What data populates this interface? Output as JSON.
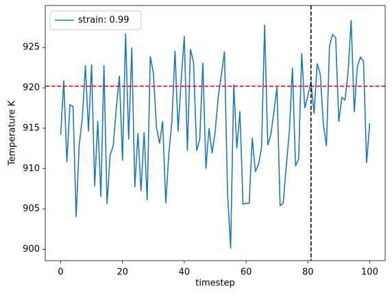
{
  "chart_data": {
    "type": "line",
    "xlabel": "timestep",
    "ylabel": "Temperature K",
    "x": [
      0,
      1,
      2,
      3,
      4,
      5,
      6,
      7,
      8,
      9,
      10,
      11,
      12,
      13,
      14,
      15,
      16,
      17,
      18,
      19,
      20,
      21,
      22,
      23,
      24,
      25,
      26,
      27,
      28,
      29,
      30,
      31,
      32,
      33,
      34,
      35,
      36,
      37,
      38,
      39,
      40,
      41,
      42,
      43,
      44,
      45,
      46,
      47,
      48,
      49,
      50,
      51,
      52,
      53,
      54,
      55,
      56,
      57,
      58,
      59,
      60,
      61,
      62,
      63,
      64,
      65,
      66,
      67,
      68,
      69,
      70,
      71,
      72,
      73,
      74,
      75,
      76,
      77,
      78,
      79,
      80,
      81,
      82,
      83,
      84,
      85,
      86,
      87,
      88,
      89,
      90,
      91,
      92,
      93,
      94,
      95,
      96,
      97,
      98,
      99,
      100
    ],
    "series": [
      {
        "name": "strain: 0.99",
        "color": "#1f77b4",
        "values": [
          914.2,
          920.9,
          910.8,
          917.9,
          917.7,
          904.0,
          913.0,
          916.2,
          922.8,
          914.6,
          922.9,
          907.8,
          915.9,
          906.5,
          922.8,
          905.6,
          911.7,
          912.8,
          917.5,
          921.5,
          911.0,
          926.7,
          913.6,
          925.0,
          907.7,
          914.4,
          907.2,
          914.5,
          906.1,
          923.9,
          921.8,
          915.1,
          913.1,
          915.9,
          905.7,
          911.8,
          915.9,
          924.6,
          914.6,
          921.0,
          926.4,
          912.2,
          924.8,
          923.1,
          912.2,
          913.6,
          923.1,
          910.0,
          915.0,
          911.9,
          914.6,
          918.9,
          921.6,
          924.5,
          907.0,
          900.1,
          920.4,
          912.5,
          917.1,
          905.6,
          905.7,
          905.7,
          913.8,
          909.6,
          910.5,
          912.6,
          927.8,
          912.9,
          914.2,
          917.0,
          920.1,
          905.4,
          905.7,
          910.3,
          914.6,
          922.5,
          910.3,
          911.2,
          924.3,
          917.5,
          919.0,
          920.8,
          916.8,
          923.0,
          921.7,
          915.5,
          912.8,
          925.2,
          926.6,
          926.2,
          915.8,
          918.8,
          918.5,
          921.9,
          928.4,
          917.0,
          922.6,
          923.8,
          923.3,
          910.7,
          915.6
        ]
      }
    ],
    "reference_lines": {
      "horizontal": {
        "value": 920.2,
        "color": "red"
      },
      "vertical": {
        "value": 81,
        "color": "black"
      }
    },
    "xlim": [
      -5,
      105
    ],
    "xticks": [
      0,
      20,
      40,
      60,
      80,
      100
    ],
    "ylim": [
      898.6,
      930.2
    ],
    "yticks": [
      900,
      905,
      910,
      915,
      920,
      925
    ],
    "legend": "upper left"
  }
}
